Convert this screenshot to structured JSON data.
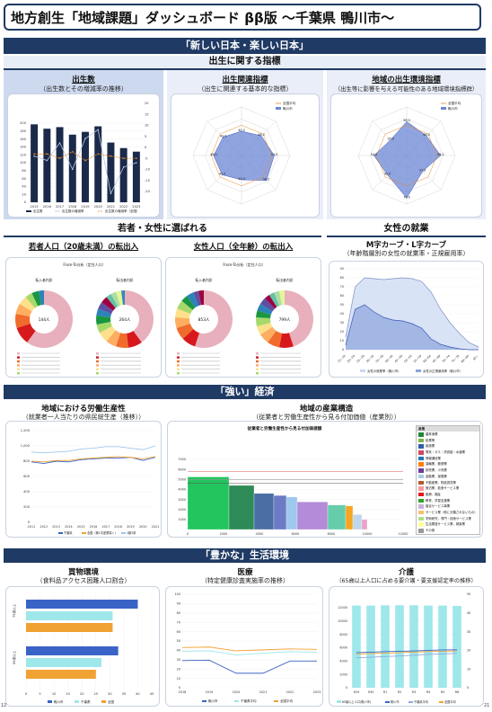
{
  "header": {
    "title": "地方創生「地域課題」ダッシュボード ββ版 〜千葉県 鴨川市〜"
  },
  "sections": {
    "new_japan": "「新しい日本・楽しい日本」",
    "birth_indicators": "出生に関する指標",
    "young_women": "若者・女性に選ばれる",
    "women_work": "女性の就業",
    "strong_economy": "「強い」経済",
    "rich_life": "「豊かな」生活環境"
  },
  "panels": {
    "births": {
      "title": "出生数",
      "sub": "（出生数とその増減率の推移）"
    },
    "birth_related": {
      "title": "出生関連指標",
      "sub": "（出生に関連する基本的な指標）"
    },
    "birth_env": {
      "title": "地域の出生環境指標",
      "sub": "（出生等に影響を与える可能性のある地域環境指標群）"
    },
    "youth_migration": {
      "title": "若者人口（20歳未満）の転出入"
    },
    "female_migration": {
      "title": "女性人口（全年齢）の転出入"
    },
    "mcurve": {
      "title": "M字カーブ・L字カーブ",
      "sub": "（年齢階層別の女性の就業率・正規雇用率）"
    },
    "labor_productivity": {
      "title": "地域における労働生産性",
      "sub": "（就業者一人当たりの県民総生産（推移））"
    },
    "industry": {
      "title": "地域の産業構造",
      "sub": "（従業者と労働生産性から見る付加価値（産業別））"
    },
    "shopping": {
      "title": "買物環境",
      "sub": "（食料品アクセス困難人口割合）"
    },
    "medical": {
      "title": "医療",
      "sub": "（特定健康診査実施率の推移）"
    },
    "care": {
      "title": "介護",
      "sub": "（65歳以上人口に占める要介護・要支援認定率の推移）"
    }
  },
  "labels": {
    "births_legend": [
      "出生数",
      "出生数の増減率",
      "出生数の増減率（全国）"
    ],
    "radar_legend": [
      "全国平均",
      "鴨川市"
    ],
    "donut_in": "転入者内訳",
    "donut_out": "転出者内訳",
    "youth_center_in": "144人",
    "youth_center_out": "264人",
    "female_center_in": "853人",
    "female_center_out": "799人",
    "from_to_title": "From-To分析（定住人口）",
    "mcurve_legend": [
      "女性の就業率（鴨川市）",
      "女性の正規雇用率（鴨川市）"
    ],
    "lp_legend": [
      "千葉県",
      "全国（第1次産業除く）",
      "1都3県"
    ],
    "industry_chart_title": "従業者と労働生産性から見る付加価値額",
    "industry_legend_head": "産業",
    "industry_list": [
      "農林漁業",
      "鉱業等",
      "製造業",
      "電気・ガス・熱供給・水道業",
      "情報通信業",
      "運輸業，郵便業",
      "卸売業，小売業",
      "金融業，保険業",
      "不動産業，物品賃貸業",
      "宿泊業，飲食サービス業",
      "医療，福祉",
      "教育，学習支援業",
      "複合サービス事業",
      "サービス業（他に分類されないもの）",
      "学術研究，専門・技術サービス業",
      "生活関連サービス業，娯楽業",
      "その他"
    ],
    "shop_legend": [
      "鴨川市",
      "千葉県",
      "全国"
    ],
    "shop_groups": [
      "75歳以上",
      "65歳以上"
    ],
    "medical_legend": [
      "鴨川市",
      "千葉県平均",
      "全国平均"
    ],
    "care_legend": [
      "65歳以上人口(鴨川市)",
      "鴨川市",
      "千葉県平均",
      "全国平均"
    ],
    "page_left": "12",
    "page_right": "21"
  },
  "colors": {
    "navy": "#1f3a64",
    "births_bar": "#1b2a4a",
    "radar_fill": "#6b86d6",
    "mcurve_fill": "#c9d7f2",
    "mcurve_line": "#7e8fc6",
    "teal": "#9ee7ea",
    "orange": "#f0a233",
    "blue": "#3a63c7"
  },
  "chart_data": [
    {
      "type": "bar",
      "name": "births",
      "categories": [
        "2015",
        "2016",
        "2017",
        "2018",
        "2019",
        "2020",
        "2021",
        "2022",
        "2023"
      ],
      "series": [
        {
          "name": "出生数",
          "values": [
            197,
            186,
            190,
            171,
            178,
            192,
            151,
            137,
            128
          ]
        },
        {
          "name": "出生数の増減率",
          "values": [
            -4,
            -6,
            2,
            -10,
            4,
            8,
            -21,
            -9,
            -7
          ]
        },
        {
          "name": "出生数の増減率（全国）",
          "values": [
            -3,
            -3,
            -5,
            -2,
            -6,
            -3,
            -4,
            -5,
            -5
          ]
        }
      ],
      "ylim": [
        0,
        250
      ],
      "y2lim": [
        -25,
        20
      ],
      "yticks": [
        0,
        20,
        40,
        60,
        80,
        100,
        120,
        140,
        160,
        180,
        200
      ],
      "y2ticks": [
        -20,
        -15,
        -10,
        -5,
        0,
        5,
        10,
        15,
        20
      ]
    },
    {
      "type": "bar",
      "name": "shopping",
      "categories": [
        "75歳以上",
        "65歳以上"
      ],
      "series": [
        {
          "name": "鴨川市",
          "values": [
            40.0,
            33.0
          ]
        },
        {
          "name": "千葉県",
          "values": [
            31.0,
            27.0
          ]
        },
        {
          "name": "全国",
          "values": [
            31.0,
            25.0
          ]
        }
      ],
      "xlim": [
        0,
        45
      ],
      "xticks": [
        0,
        5,
        10,
        15,
        20,
        25,
        30,
        35,
        40,
        45
      ]
    },
    {
      "type": "line",
      "name": "medical",
      "x": [
        "2018",
        "2019",
        "2020",
        "2021",
        "2022",
        "2023"
      ],
      "series": [
        {
          "name": "鴨川市",
          "values": [
            29.0,
            29.5,
            15.5,
            15.5,
            28.5,
            28.5
          ]
        },
        {
          "name": "千葉県平均",
          "values": [
            39.0,
            39.5,
            35.0,
            37.0,
            38.5,
            38.0
          ]
        },
        {
          "name": "全国平均",
          "values": [
            43.0,
            43.5,
            39.5,
            40.5,
            41.5,
            41.0
          ]
        }
      ],
      "ylim": [
        0,
        100
      ],
      "yticks": [
        0,
        10,
        20,
        30,
        40,
        50,
        60,
        70,
        80,
        90,
        100
      ]
    },
    {
      "type": "bar",
      "name": "care",
      "categories": [
        "H29",
        "H30",
        "R1",
        "R2",
        "R3",
        "R4",
        "R5",
        "R6"
      ],
      "series": [
        {
          "name": "65歳以上人口(鴨川市)",
          "values": [
            12300,
            12300,
            12350,
            12350,
            12350,
            12300,
            12300,
            12250
          ]
        },
        {
          "name": "鴨川市",
          "values": [
            18.8,
            19.0,
            19.3,
            19.5,
            19.7,
            20.0,
            20.2,
            20.3
          ]
        },
        {
          "name": "千葉県平均",
          "values": [
            16.0,
            16.3,
            16.7,
            17.0,
            17.4,
            17.8,
            18.1,
            18.4
          ]
        },
        {
          "name": "全国平均",
          "values": [
            18.0,
            18.3,
            18.5,
            18.8,
            19.1,
            19.3,
            19.5,
            19.7
          ]
        }
      ],
      "ylim": [
        0,
        14000
      ],
      "y2lim": [
        0,
        50
      ],
      "yticks": [
        0,
        2000,
        4000,
        6000,
        8000,
        10000,
        12000
      ],
      "y2ticks": [
        0,
        10,
        20,
        30,
        40,
        50
      ]
    },
    {
      "type": "line",
      "name": "labor_productivity",
      "x": [
        "2011",
        "2012",
        "2013",
        "2014",
        "2015",
        "2016",
        "2017",
        "2018",
        "2019",
        "2020",
        "2021"
      ],
      "series": [
        {
          "name": "千葉県",
          "values": [
            790,
            770,
            800,
            790,
            820,
            830,
            840,
            840,
            850,
            810,
            850
          ]
        },
        {
          "name": "全国（第1次産業除く）",
          "values": [
            800,
            790,
            810,
            810,
            830,
            840,
            850,
            860,
            850,
            830,
            860
          ]
        },
        {
          "name": "1都3県",
          "values": [
            920,
            910,
            920,
            930,
            960,
            970,
            990,
            990,
            970,
            950,
            1000
          ]
        }
      ],
      "ylim": [
        0,
        1200
      ],
      "yticks": [
        0,
        200,
        400,
        600,
        800,
        1000,
        1200
      ]
    },
    {
      "type": "area",
      "name": "mcurve",
      "x": [
        "15~19",
        "20~24",
        "25~29",
        "30~34",
        "35~39",
        "40~44",
        "45~49",
        "50~54",
        "55~59",
        "60~64",
        "65~69",
        "70~74",
        "75~79",
        "80~84",
        "85~"
      ],
      "series": [
        {
          "name": "女性の就業率（鴨川市）",
          "values": [
            14,
            70,
            80,
            79,
            78,
            79,
            80,
            79,
            76,
            64,
            45,
            30,
            18,
            8,
            3
          ]
        },
        {
          "name": "女性の正規雇用率（鴨川市）",
          "values": [
            5,
            45,
            50,
            42,
            36,
            33,
            32,
            29,
            24,
            12,
            6,
            3,
            1,
            0,
            0
          ]
        }
      ],
      "ylim": [
        0,
        90
      ]
    },
    {
      "type": "bar",
      "name": "industry",
      "series": [
        {
          "name": "付加価値",
          "values": [
            5250,
            4400,
            3600,
            3400,
            3250,
            2750,
            2450,
            2350,
            1500,
            1000
          ]
        }
      ],
      "ylim": [
        0,
        7000
      ],
      "yticks": [
        1000,
        2000,
        3000,
        4000,
        5000,
        6000,
        7000
      ],
      "xticks": [
        "0",
        "2000",
        "4000",
        "6000",
        "8000",
        "10000",
        "12000"
      ]
    },
    {
      "type": "pie",
      "name": "youth_in",
      "values": [
        60,
        10,
        8,
        6,
        5,
        4,
        4,
        3
      ]
    },
    {
      "type": "pie",
      "name": "youth_out",
      "values": [
        40,
        8,
        7,
        6,
        6,
        5,
        5,
        4,
        4,
        4,
        3,
        3,
        3,
        2
      ]
    },
    {
      "type": "pie",
      "name": "female_in",
      "values": [
        55,
        8,
        7,
        6,
        5,
        5,
        4,
        4,
        3,
        3
      ]
    },
    {
      "type": "pie",
      "name": "female_out",
      "values": [
        45,
        8,
        7,
        6,
        5,
        5,
        4,
        4,
        4,
        3,
        3,
        3,
        3
      ]
    },
    {
      "type": "radar",
      "name": "birth_related",
      "series": [
        {
          "name": "全国平均",
          "values": [
            50,
            50,
            50,
            50,
            50,
            50,
            50,
            50
          ]
        },
        {
          "name": "鴨川市",
          "values": [
            40,
            46,
            54,
            58,
            40,
            45,
            46,
            43
          ]
        }
      ]
    },
    {
      "type": "radar",
      "name": "birth_env",
      "series": [
        {
          "name": "全国平均",
          "values": [
            50,
            50,
            50,
            50,
            50,
            50,
            50,
            50
          ]
        },
        {
          "name": "鴨川市",
          "values": [
            56,
            46,
            56,
            37,
            70,
            45,
            54,
            37
          ]
        }
      ]
    }
  ]
}
